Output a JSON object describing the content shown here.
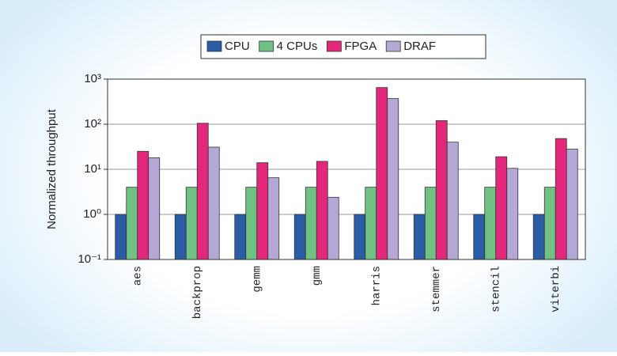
{
  "chart_data": {
    "type": "bar",
    "log_scale": true,
    "grid": true,
    "legend": "top",
    "ylabel": "Normalized throughput",
    "categories": [
      "aes",
      "backprop",
      "gemm",
      "gmm",
      "harris",
      "stemmer",
      "stencil",
      "viterbi"
    ],
    "series": [
      {
        "name": "CPU",
        "color": "#2b5ca6",
        "values": [
          1,
          1,
          1,
          1,
          1,
          1,
          1,
          1
        ]
      },
      {
        "name": "4 CPUs",
        "color": "#72c184",
        "values": [
          4,
          4,
          4,
          4,
          4,
          4,
          4,
          4
        ]
      },
      {
        "name": "FPGA",
        "color": "#e3287c",
        "values": [
          25,
          105,
          14,
          15,
          650,
          120,
          19,
          48
        ]
      },
      {
        "name": "DRAF",
        "color": "#b5a8d6",
        "values": [
          18,
          31,
          6.5,
          2.4,
          370,
          40,
          10.5,
          28
        ]
      }
    ],
    "ylim": [
      0.1,
      1000
    ],
    "yticks": [
      {
        "value": 0.1,
        "label": "10⁻¹"
      },
      {
        "value": 1,
        "label": "10⁰"
      },
      {
        "value": 10,
        "label": "10¹"
      },
      {
        "value": 100,
        "label": "10²"
      },
      {
        "value": 1000,
        "label": "10³"
      }
    ]
  }
}
